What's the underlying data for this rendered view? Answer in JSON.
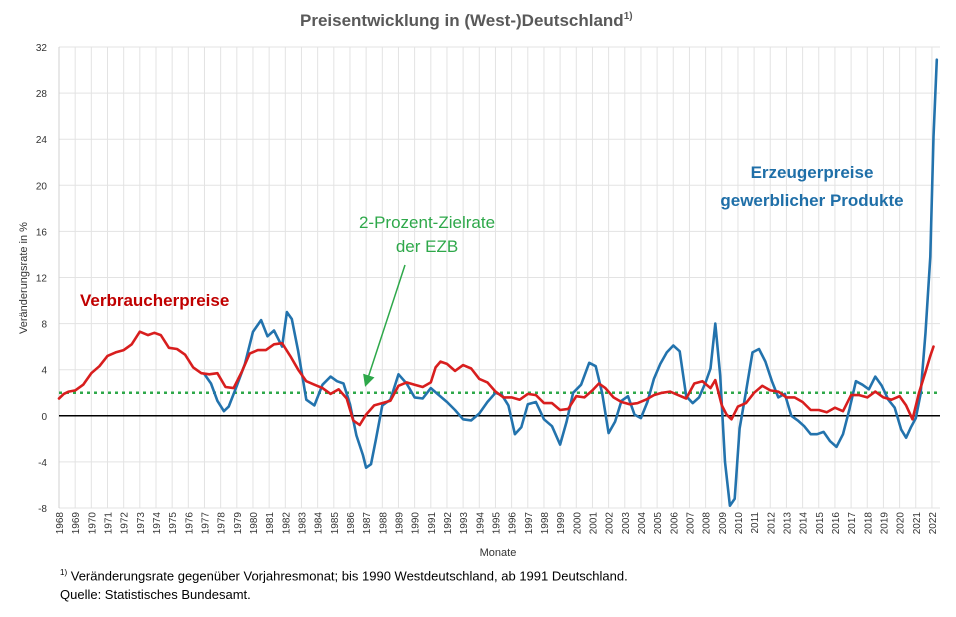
{
  "chart_data": {
    "type": "line",
    "title": "Preisentwicklung in (West-)Deutschland",
    "title_sup": "1)",
    "xlabel": "Monate",
    "ylabel": "Veränderungsrate in %",
    "ylim": [
      -8,
      32
    ],
    "yticks": [
      -8,
      -4,
      0,
      4,
      8,
      12,
      16,
      20,
      24,
      28,
      32
    ],
    "xlim": [
      1968,
      2022.5
    ],
    "xticks": [
      "1968",
      "1969",
      "1970",
      "1971",
      "1972",
      "1973",
      "1974",
      "1975",
      "1976",
      "1977",
      "1978",
      "1979",
      "1980",
      "1981",
      "1982",
      "1983",
      "1984",
      "1985",
      "1986",
      "1987",
      "1988",
      "1989",
      "1990",
      "1991",
      "1992",
      "1993",
      "1994",
      "1995",
      "1996",
      "1997",
      "1998",
      "1999",
      "2000",
      "2001",
      "2002",
      "2003",
      "2004",
      "2005",
      "2006",
      "2007",
      "2008",
      "2009",
      "2010",
      "2011",
      "2012",
      "2013",
      "2014",
      "2015",
      "2016",
      "2017",
      "2018",
      "2019",
      "2020",
      "2021",
      "2022"
    ],
    "grid": true,
    "target_line": {
      "value": 2,
      "label_line1": "2-Prozent-Zielrate",
      "label_line2": "der EZB",
      "color": "#2ea84a"
    },
    "series": [
      {
        "name": "Verbraucherpreise",
        "color": "#d81e1e",
        "x": [
          1968.0,
          1968.3,
          1968.6,
          1969.0,
          1969.5,
          1970.0,
          1970.5,
          1971.0,
          1971.5,
          1972.0,
          1972.5,
          1973.0,
          1973.5,
          1973.9,
          1974.3,
          1974.8,
          1975.3,
          1975.8,
          1976.3,
          1976.8,
          1977.3,
          1977.8,
          1978.3,
          1978.8,
          1979.3,
          1979.8,
          1980.3,
          1980.8,
          1981.3,
          1981.8,
          1982.3,
          1982.8,
          1983.3,
          1983.8,
          1984.3,
          1984.8,
          1985.3,
          1985.8,
          1986.2,
          1986.6,
          1987.0,
          1987.5,
          1988.0,
          1988.5,
          1989.0,
          1989.5,
          1990.0,
          1990.5,
          1991.0,
          1991.3,
          1991.6,
          1992.0,
          1992.5,
          1993.0,
          1993.5,
          1994.0,
          1994.5,
          1995.0,
          1995.5,
          1996.0,
          1996.5,
          1997.0,
          1997.5,
          1998.0,
          1998.5,
          1999.0,
          1999.5,
          2000.0,
          2000.5,
          2001.0,
          2001.4,
          2001.8,
          2002.3,
          2002.8,
          2003.3,
          2003.8,
          2004.3,
          2004.8,
          2005.3,
          2005.8,
          2006.3,
          2006.8,
          2007.3,
          2007.8,
          2008.3,
          2008.6,
          2009.0,
          2009.3,
          2009.6,
          2010.0,
          2010.5,
          2011.0,
          2011.5,
          2012.0,
          2012.5,
          2013.0,
          2013.5,
          2014.0,
          2014.5,
          2015.0,
          2015.5,
          2016.0,
          2016.5,
          2017.0,
          2017.5,
          2018.0,
          2018.5,
          2019.0,
          2019.5,
          2020.0,
          2020.4,
          2020.8,
          2021.2,
          2021.6,
          2021.9,
          2022.1
        ],
        "values": [
          1.5,
          1.9,
          2.1,
          2.2,
          2.7,
          3.7,
          4.3,
          5.2,
          5.5,
          5.7,
          6.2,
          7.3,
          7.0,
          7.2,
          7.0,
          5.9,
          5.8,
          5.3,
          4.2,
          3.7,
          3.6,
          3.7,
          2.5,
          2.4,
          3.8,
          5.4,
          5.7,
          5.7,
          6.2,
          6.3,
          5.2,
          4.0,
          3.0,
          2.7,
          2.4,
          1.9,
          2.3,
          1.5,
          -0.4,
          -0.8,
          0.1,
          0.9,
          1.1,
          1.3,
          2.6,
          2.9,
          2.7,
          2.5,
          2.9,
          4.2,
          4.7,
          4.5,
          3.9,
          4.4,
          4.1,
          3.2,
          2.9,
          2.1,
          1.6,
          1.6,
          1.4,
          1.9,
          1.8,
          1.1,
          1.1,
          0.5,
          0.6,
          1.7,
          1.6,
          2.2,
          2.8,
          2.4,
          1.6,
          1.2,
          1.0,
          1.1,
          1.4,
          1.8,
          2.0,
          2.1,
          1.8,
          1.5,
          2.8,
          3.0,
          2.4,
          3.1,
          0.9,
          0.1,
          -0.3,
          0.8,
          1.1,
          2.0,
          2.6,
          2.2,
          2.1,
          1.6,
          1.6,
          1.2,
          0.5,
          0.5,
          0.3,
          0.7,
          0.4,
          1.8,
          1.8,
          1.6,
          2.1,
          1.6,
          1.4,
          1.7,
          0.9,
          -0.3,
          2.0,
          3.8,
          5.2,
          6.0
        ]
      },
      {
        "name": "Erzeugerpreise gewerblicher Produkte",
        "color": "#2373ad",
        "x": [
          1977.0,
          1977.4,
          1977.8,
          1978.2,
          1978.5,
          1979.0,
          1979.5,
          1980.0,
          1980.5,
          1980.9,
          1981.3,
          1981.8,
          1982.1,
          1982.4,
          1982.8,
          1983.3,
          1983.8,
          1984.3,
          1984.8,
          1985.2,
          1985.6,
          1986.0,
          1986.4,
          1986.8,
          1987.0,
          1987.3,
          1987.6,
          1988.0,
          1988.5,
          1989.0,
          1989.5,
          1990.0,
          1990.5,
          1991.0,
          1991.5,
          1992.0,
          1992.5,
          1993.0,
          1993.5,
          1994.0,
          1994.5,
          1995.0,
          1995.4,
          1995.8,
          1996.2,
          1996.6,
          1997.0,
          1997.5,
          1998.0,
          1998.5,
          1999.0,
          1999.4,
          1999.8,
          2000.3,
          2000.8,
          2001.2,
          2001.6,
          2002.0,
          2002.4,
          2002.8,
          2003.2,
          2003.6,
          2004.0,
          2004.4,
          2004.8,
          2005.2,
          2005.6,
          2006.0,
          2006.4,
          2006.8,
          2007.2,
          2007.6,
          2008.0,
          2008.3,
          2008.6,
          2008.9,
          2009.2,
          2009.5,
          2009.8,
          2010.1,
          2010.5,
          2010.9,
          2011.3,
          2011.7,
          2012.1,
          2012.5,
          2012.9,
          2013.3,
          2013.7,
          2014.1,
          2014.5,
          2014.9,
          2015.3,
          2015.7,
          2016.1,
          2016.5,
          2016.9,
          2017.3,
          2017.7,
          2018.1,
          2018.5,
          2018.9,
          2019.3,
          2019.7,
          2020.1,
          2020.4,
          2020.7,
          2021.0,
          2021.3,
          2021.6,
          2021.9,
          2022.1,
          2022.3
        ],
        "values": [
          3.6,
          2.8,
          1.3,
          0.4,
          0.8,
          2.6,
          4.5,
          7.3,
          8.3,
          6.9,
          7.4,
          6.0,
          9.0,
          8.4,
          5.6,
          1.4,
          0.9,
          2.7,
          3.4,
          3.0,
          2.8,
          1.0,
          -1.7,
          -3.4,
          -4.5,
          -4.2,
          -2.1,
          0.9,
          1.4,
          3.6,
          2.8,
          1.6,
          1.5,
          2.4,
          1.8,
          1.2,
          0.5,
          -0.3,
          -0.4,
          0.2,
          1.2,
          2.0,
          1.8,
          0.9,
          -1.6,
          -1.0,
          1.0,
          1.2,
          -0.3,
          -0.9,
          -2.5,
          -0.5,
          2.0,
          2.7,
          4.6,
          4.3,
          2.0,
          -1.5,
          -0.5,
          1.3,
          1.7,
          0.1,
          -0.2,
          1.2,
          3.2,
          4.5,
          5.5,
          6.1,
          5.6,
          1.7,
          1.1,
          1.6,
          2.9,
          4.1,
          8.0,
          3.5,
          -4.0,
          -7.8,
          -7.2,
          -1.1,
          2.1,
          5.5,
          5.8,
          4.7,
          3.0,
          1.6,
          1.9,
          0.0,
          -0.4,
          -0.9,
          -1.6,
          -1.6,
          -1.4,
          -2.2,
          -2.7,
          -1.6,
          0.6,
          3.0,
          2.7,
          2.3,
          3.4,
          2.6,
          1.4,
          0.7,
          -1.2,
          -1.9,
          -1.0,
          -0.2,
          1.9,
          7.2,
          13.8,
          24.2,
          30.9
        ]
      }
    ],
    "annotations": {
      "red_label": "Verbraucherpreise",
      "blue_label_line1": "Erzeugerpreise",
      "blue_label_line2": "gewerblicher Produkte"
    }
  },
  "footnote": {
    "sup": "1)",
    "line1": "Veränderungsrate gegenüber Vorjahresmonat; bis 1990 Westdeutschland, ab 1991 Deutschland.",
    "line2": "Quelle: Statistisches Bundesamt."
  }
}
